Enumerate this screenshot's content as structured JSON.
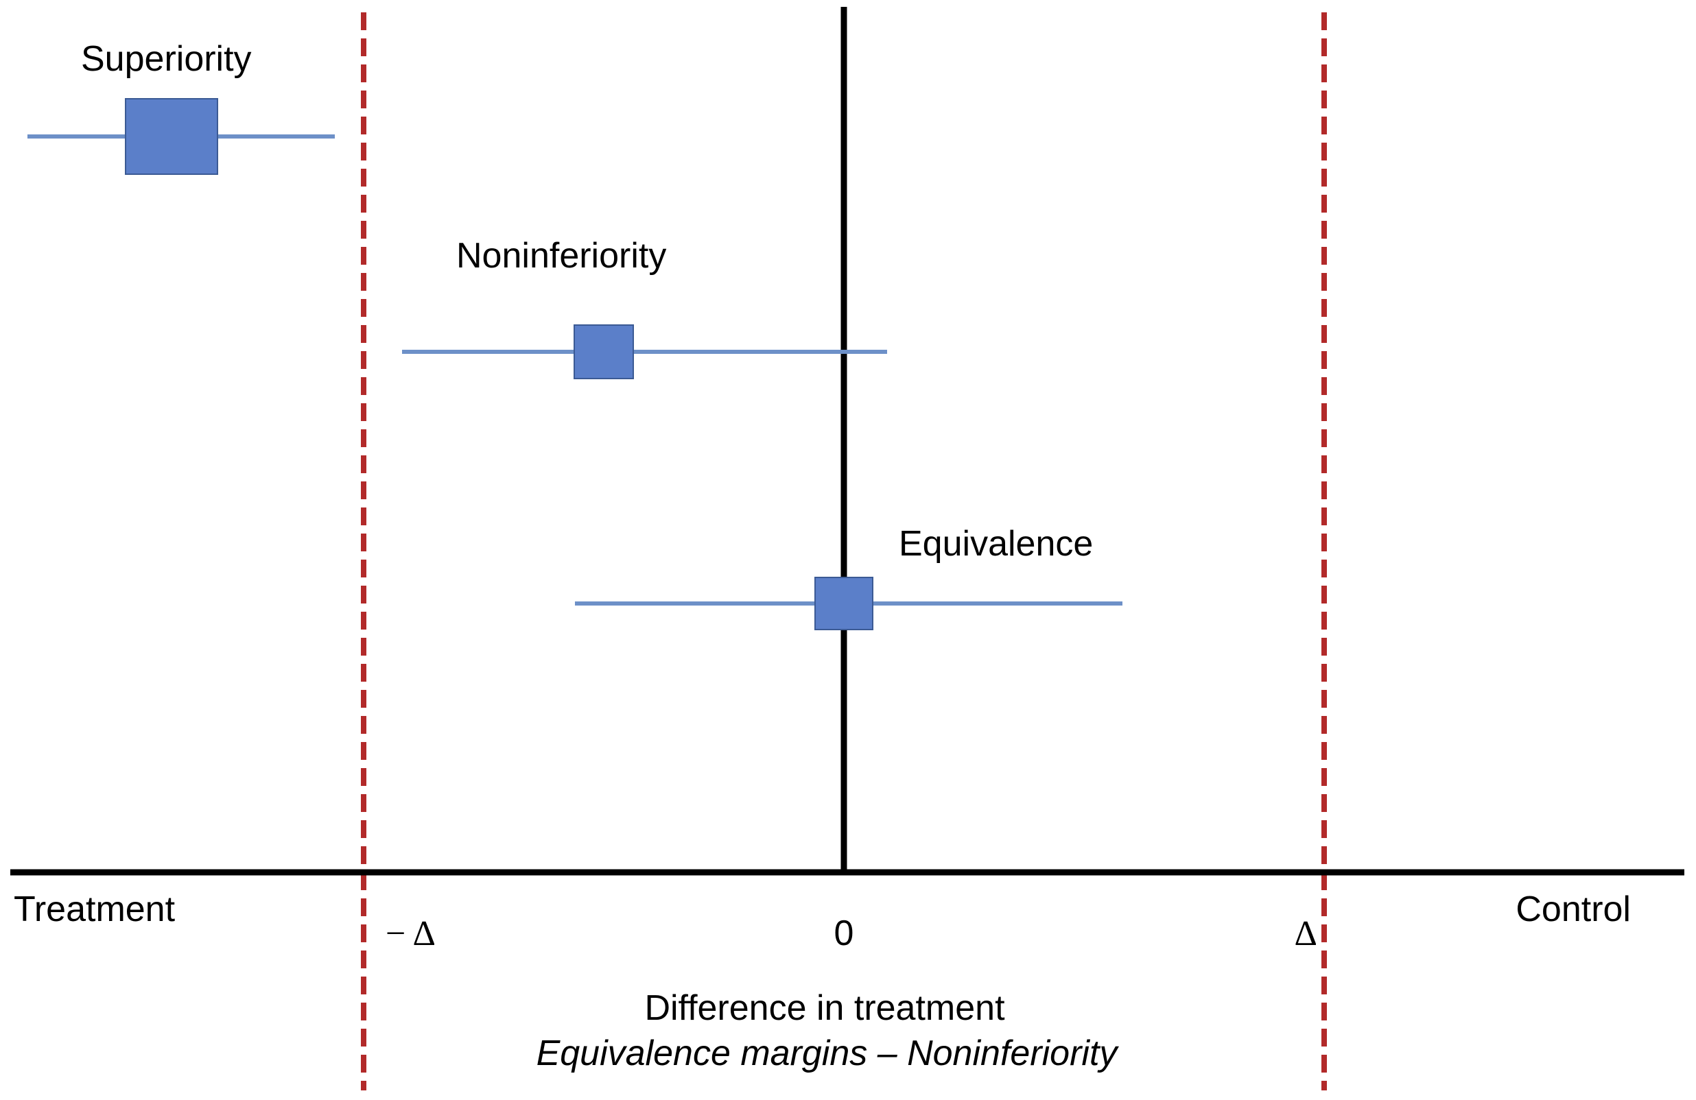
{
  "colors": {
    "axis": "#000000",
    "margin_line": "#b22a2a",
    "ci_line": "#6d90c8",
    "point_fill": "#5b7fc9",
    "point_stroke": "#3b5a94"
  },
  "axis": {
    "left_label": "Treatment",
    "right_label": "Control",
    "ticks": [
      "− Δ",
      "0",
      "Δ"
    ],
    "title": "Difference in treatment",
    "subtitle": "Equivalence margins – Noninferiority"
  },
  "chart_data": {
    "type": "forest",
    "x_range": [
      -2.0,
      1.7
    ],
    "margin": 1.0,
    "studies": [
      {
        "label": "Superiority",
        "estimate": -1.4,
        "ci": [
          -1.7,
          -1.06
        ],
        "marker_size": "large"
      },
      {
        "label": "Noninferiority",
        "estimate": -0.5,
        "ci": [
          -0.92,
          0.09
        ],
        "marker_size": "small"
      },
      {
        "label": "Equivalence",
        "estimate": 0.0,
        "ci": [
          -0.56,
          0.58
        ],
        "marker_size": "medium"
      }
    ]
  }
}
